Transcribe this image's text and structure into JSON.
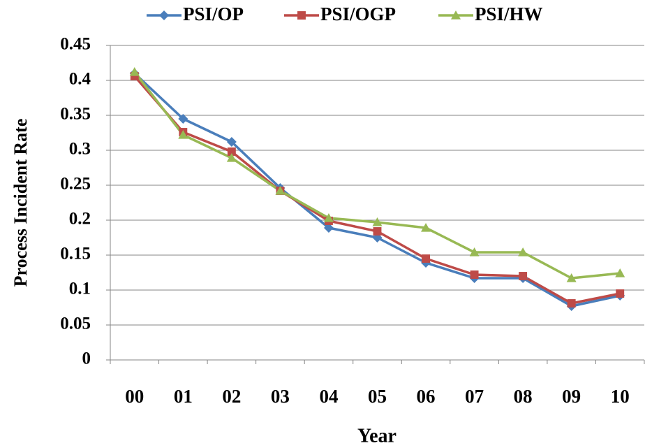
{
  "chart_data": {
    "type": "line",
    "x_label": "Year",
    "y_label": "Process Incident Rate",
    "categories": [
      "00",
      "01",
      "02",
      "03",
      "04",
      "05",
      "06",
      "07",
      "08",
      "09",
      "10"
    ],
    "series": [
      {
        "name": "PSI/OP",
        "color": "#4a7ebb",
        "marker": "diamond",
        "values": [
          0.41,
          0.345,
          0.312,
          0.246,
          0.189,
          0.175,
          0.139,
          0.117,
          0.117,
          0.077,
          0.092
        ]
      },
      {
        "name": "PSI/OGP",
        "color": "#be4b48",
        "marker": "square",
        "values": [
          0.406,
          0.326,
          0.298,
          0.242,
          0.199,
          0.184,
          0.145,
          0.122,
          0.12,
          0.081,
          0.095
        ]
      },
      {
        "name": "PSI/HW",
        "color": "#98b954",
        "marker": "triangle",
        "values": [
          0.412,
          0.322,
          0.289,
          0.242,
          0.203,
          0.197,
          0.189,
          0.154,
          0.154,
          0.117,
          0.124
        ]
      }
    ],
    "ylim": [
      0,
      0.45
    ],
    "yticks": [
      0,
      0.05,
      0.1,
      0.15,
      0.2,
      0.25,
      0.3,
      0.35,
      0.4,
      0.45
    ],
    "grid": true,
    "legend": "top"
  }
}
